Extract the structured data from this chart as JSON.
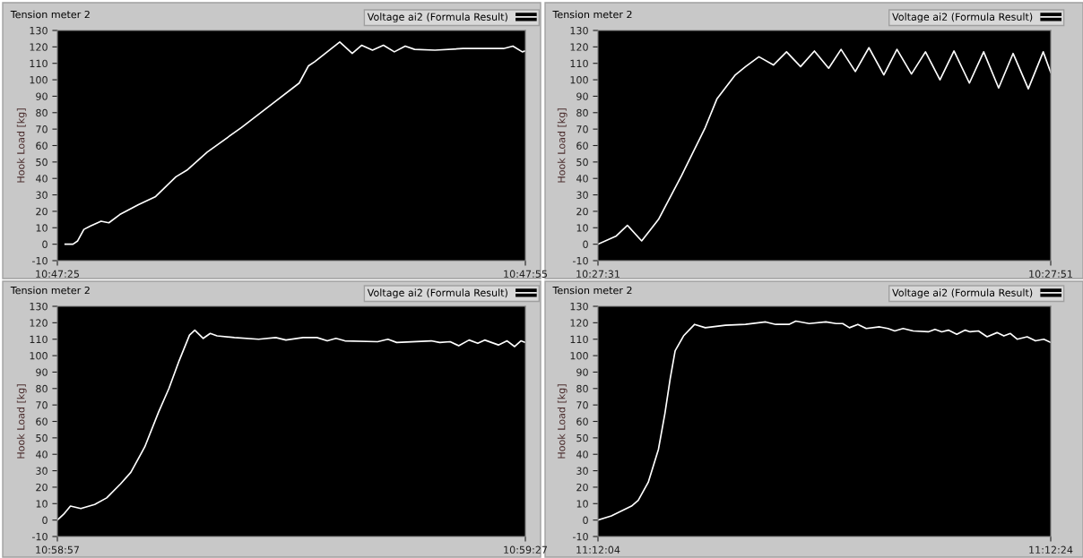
{
  "chart_data": [
    {
      "type": "line",
      "title": "Tension meter 2",
      "ylabel": "Hook Load [kg]",
      "legend": "top right",
      "grid": false,
      "x": [
        10.790417,
        10.790556,
        10.790639,
        10.79075,
        10.790861,
        10.791056,
        10.791195,
        10.791389,
        10.791722,
        10.792028,
        10.792389,
        10.792584,
        10.792945,
        10.793556,
        10.794167,
        10.794584,
        10.79475,
        10.794861,
        10.795306,
        10.795528,
        10.795695,
        10.795889,
        10.796084,
        10.796278,
        10.796472,
        10.796639,
        10.797,
        10.7975,
        10.798222,
        10.798389,
        10.798556,
        10.798611
      ],
      "series": [
        {
          "name": "Voltage ai2 (Formula Result)",
          "color": "#ffffff",
          "values": [
            0,
            0,
            2,
            9,
            11,
            14,
            13,
            18,
            24,
            29,
            41,
            45,
            56,
            71,
            87,
            98,
            108.5,
            111,
            123,
            116,
            121,
            118,
            121,
            117,
            120.5,
            118.5,
            118,
            119,
            119,
            120.5,
            117,
            117.5
          ]
        }
      ],
      "xlim": [
        10.790278,
        10.798611
      ],
      "xticks": [
        {
          "value": 10.790278,
          "label": "10:47:25"
        },
        {
          "value": 10.798611,
          "label": "10:47:55"
        }
      ],
      "ylim": [
        -10,
        130
      ],
      "yticks": [
        -10,
        0,
        10,
        20,
        30,
        40,
        50,
        60,
        70,
        80,
        90,
        100,
        110,
        120,
        130
      ]
    },
    {
      "type": "line",
      "title": "Tension meter 2",
      "ylabel": "Hook Load [kg]",
      "legend": "top right",
      "grid": false,
      "x": [
        10.458611,
        10.458836,
        10.458972,
        10.459147,
        10.459353,
        10.459639,
        10.459928,
        10.460072,
        10.460297,
        10.460422,
        10.460586,
        10.460764,
        10.460925,
        10.461097,
        10.461267,
        10.461442,
        10.461594,
        10.461769,
        10.461936,
        10.462119,
        10.46228,
        10.462458,
        10.46263,
        10.462808,
        10.46298,
        10.463169,
        10.463344,
        10.463528,
        10.463705,
        10.463892,
        10.464075,
        10.464167
      ],
      "series": [
        {
          "name": "Voltage ai2 (Formula Result)",
          "color": "#ffffff",
          "values": [
            0,
            5,
            11.5,
            2,
            15,
            42,
            71,
            88.5,
            103,
            108,
            114,
            109,
            117,
            108,
            117.5,
            107,
            118.5,
            105,
            119.5,
            103,
            118.5,
            103.5,
            117,
            100,
            117.5,
            98,
            117,
            95,
            116,
            94.5,
            117,
            104.5
          ]
        }
      ],
      "xlim": [
        10.458611,
        10.464167
      ],
      "xticks": [
        {
          "value": 10.458611,
          "label": "10:27:31"
        },
        {
          "value": 10.464167,
          "label": "10:27:51"
        }
      ],
      "ylim": [
        -10,
        130
      ],
      "yticks": [
        -10,
        0,
        10,
        20,
        30,
        40,
        50,
        60,
        70,
        80,
        90,
        100,
        110,
        120,
        130
      ]
    },
    {
      "type": "line",
      "title": "Tension meter 2",
      "ylabel": "Hook Load [kg]",
      "legend": "top right",
      "grid": false,
      "x": [
        10.9825,
        10.982611,
        10.982733,
        10.982917,
        10.983164,
        10.983378,
        10.983625,
        10.983808,
        10.984056,
        10.9843,
        10.984486,
        10.984669,
        10.984853,
        10.984947,
        10.985097,
        10.985222,
        10.985344,
        10.985653,
        10.986083,
        10.986389,
        10.986569,
        10.986875,
        10.987122,
        10.987306,
        10.987461,
        10.987619,
        10.988203,
        10.988386,
        10.988542,
        10.989156,
        10.989308,
        10.989494,
        10.989647,
        10.989831,
        10.989986,
        10.990108,
        10.990353,
        10.990508,
        10.990642,
        10.990753,
        10.990833
      ],
      "series": [
        {
          "name": "Voltage ai2 (Formula Result)",
          "color": "#ffffff",
          "values": [
            0,
            3.5,
            8.5,
            7,
            9.5,
            13.5,
            22,
            29,
            44.5,
            65.5,
            80,
            97,
            112.5,
            115.5,
            110.5,
            113.5,
            112,
            111,
            110,
            111,
            109.5,
            111,
            111,
            109,
            110.5,
            109,
            108.5,
            110,
            108,
            109,
            108,
            108.5,
            106,
            109.5,
            107.5,
            109.5,
            106.5,
            109,
            105.5,
            109,
            108
          ]
        }
      ],
      "xlim": [
        10.9825,
        10.990833
      ],
      "xticks": [
        {
          "value": 10.9825,
          "label": "10:58:57"
        },
        {
          "value": 10.990833,
          "label": "10:59:27"
        }
      ],
      "ylim": [
        -10,
        130
      ],
      "yticks": [
        -10,
        0,
        10,
        20,
        30,
        40,
        50,
        60,
        70,
        80,
        90,
        100,
        110,
        120,
        130
      ]
    },
    {
      "type": "line",
      "title": "Tension meter 2",
      "ylabel": "Hook Load [kg]",
      "legend": "top right",
      "grid": false,
      "x": [
        11.201111,
        11.201275,
        11.201522,
        11.201605,
        11.201728,
        11.201853,
        11.201933,
        11.201997,
        11.202058,
        11.202161,
        11.202297,
        11.202428,
        11.202675,
        11.202922,
        11.203169,
        11.203292,
        11.203455,
        11.203539,
        11.203703,
        11.203908,
        11.204033,
        11.204114,
        11.204197,
        11.2043,
        11.204403,
        11.204567,
        11.204669,
        11.204753,
        11.204855,
        11.20498,
        11.205164,
        11.205247,
        11.20533,
        11.205411,
        11.205514,
        11.205617,
        11.205678,
        11.20578,
        11.205886,
        11.206008,
        11.206092,
        11.206172,
        11.206255,
        11.206378,
        11.20648,
        11.206583,
        11.206667
      ],
      "series": [
        {
          "name": "Voltage ai2 (Formula Result)",
          "color": "#ffffff",
          "values": [
            0,
            2.5,
            8.5,
            12,
            23,
            43,
            65,
            86,
            103,
            112,
            119,
            117,
            118.5,
            119,
            120.5,
            119,
            119,
            121,
            119.5,
            120.5,
            119.5,
            119.5,
            117,
            119,
            116.5,
            117.5,
            116.5,
            115,
            116.5,
            115,
            114.5,
            116,
            114.5,
            115.5,
            113,
            115.5,
            114.5,
            115,
            111.5,
            114,
            112,
            113.5,
            110,
            111.5,
            109,
            110,
            108
          ]
        }
      ],
      "xlim": [
        11.201111,
        11.206667
      ],
      "xticks": [
        {
          "value": 11.201111,
          "label": "11:12:04"
        },
        {
          "value": 11.206667,
          "label": "11:12:24"
        }
      ],
      "ylim": [
        -10,
        130
      ],
      "yticks": [
        -10,
        0,
        10,
        20,
        30,
        40,
        50,
        60,
        70,
        80,
        90,
        100,
        110,
        120,
        130
      ]
    }
  ]
}
